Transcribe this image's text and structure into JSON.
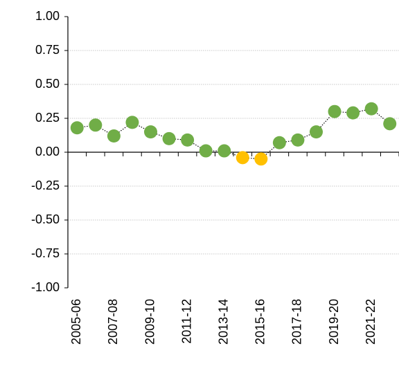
{
  "chart_data": {
    "type": "line",
    "categories": [
      "2005-06",
      null,
      "2007-08",
      null,
      "2009-10",
      null,
      "2011-12",
      null,
      "2013-14",
      null,
      "2015-16",
      null,
      "2017-18",
      null,
      "2019-20",
      null,
      "2021-22",
      null
    ],
    "values": [
      0.18,
      0.2,
      0.12,
      0.22,
      0.15,
      0.1,
      0.09,
      0.01,
      0.01,
      -0.04,
      -0.05,
      0.07,
      0.09,
      0.15,
      0.3,
      0.29,
      0.32,
      0.21
    ],
    "colors": [
      "#70ad47",
      "#70ad47",
      "#70ad47",
      "#70ad47",
      "#70ad47",
      "#70ad47",
      "#70ad47",
      "#70ad47",
      "#70ad47",
      "#ffc000",
      "#ffc000",
      "#70ad47",
      "#70ad47",
      "#70ad47",
      "#70ad47",
      "#70ad47",
      "#70ad47",
      "#70ad47"
    ],
    "line_color": "#000000",
    "ylim": [
      -1,
      1
    ],
    "yticks": [
      {
        "value": 1,
        "label": "1.00"
      },
      0.75,
      {
        "value": 0.5,
        "label": "0.50"
      },
      0.25,
      {
        "value": 0,
        "label": "0.00"
      },
      -0.25,
      {
        "value": -0.5,
        "label": "-0.50"
      },
      -0.75,
      {
        "value": -1,
        "label": "-1.00"
      }
    ],
    "grid": true
  }
}
